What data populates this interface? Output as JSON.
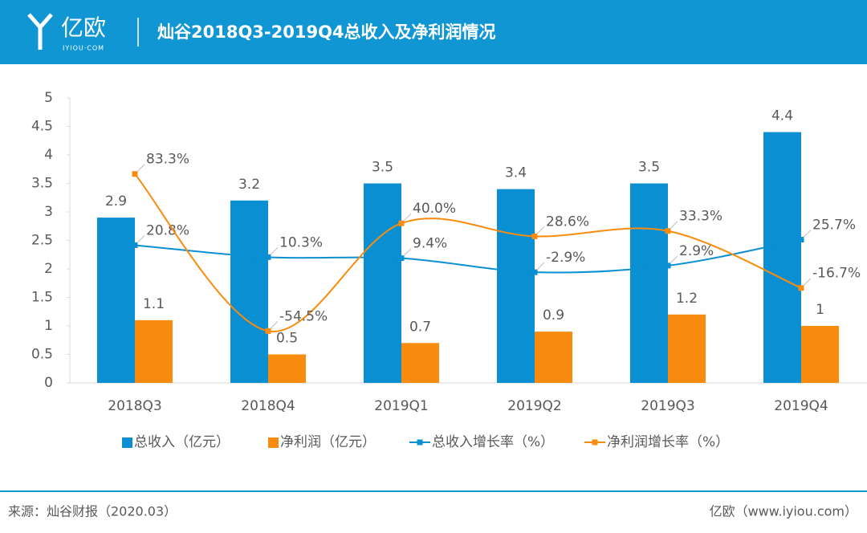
{
  "header": {
    "logo": "亿欧",
    "logo_sub": "IYIOU·COM"
  },
  "chart_data": {
    "type": "bar",
    "title": "灿谷2018Q3-2019Q4总收入及净利润情况",
    "categories": [
      "2018Q3",
      "2018Q4",
      "2019Q1",
      "2019Q2",
      "2019Q3",
      "2019Q4"
    ],
    "series": [
      {
        "name": "总收入（亿元）",
        "color": "#0b8fd3",
        "type": "bar",
        "values": [
          2.9,
          3.2,
          3.5,
          3.4,
          3.5,
          4.4
        ]
      },
      {
        "name": "净利润（亿元）",
        "color": "#f98c0e",
        "type": "bar",
        "values": [
          1.1,
          0.5,
          0.7,
          0.9,
          1.2,
          1
        ]
      },
      {
        "name": "总收入增长率（%）",
        "color": "#0b8fd3",
        "type": "line",
        "axis": "y2",
        "values": [
          20.8,
          10.3,
          9.4,
          -2.9,
          2.9,
          25.7
        ],
        "value_labels": [
          "20.8%",
          "10.3%",
          "9.4%",
          "-2.9%",
          "2.9%",
          "25.7%"
        ]
      },
      {
        "name": "净利润增长率（%）",
        "color": "#f98c0e",
        "type": "line",
        "axis": "y2",
        "values": [
          83.3,
          -54.5,
          40.0,
          28.6,
          33.3,
          -16.7
        ],
        "value_labels": [
          "83.3%",
          "-54.5%",
          "40.0%",
          "28.6%",
          "33.3%",
          "-16.7%"
        ]
      }
    ],
    "ylim": [
      0,
      5
    ],
    "yticks": [
      0,
      0.5,
      1,
      1.5,
      2,
      2.5,
      3,
      3.5,
      4,
      4.5,
      5
    ],
    "y2lim": [
      -100,
      150
    ],
    "legend": "bottom"
  },
  "footer": {
    "source": "来源：灿谷财报（2020.03）",
    "site": "亿欧（www.iyiou.com）"
  }
}
